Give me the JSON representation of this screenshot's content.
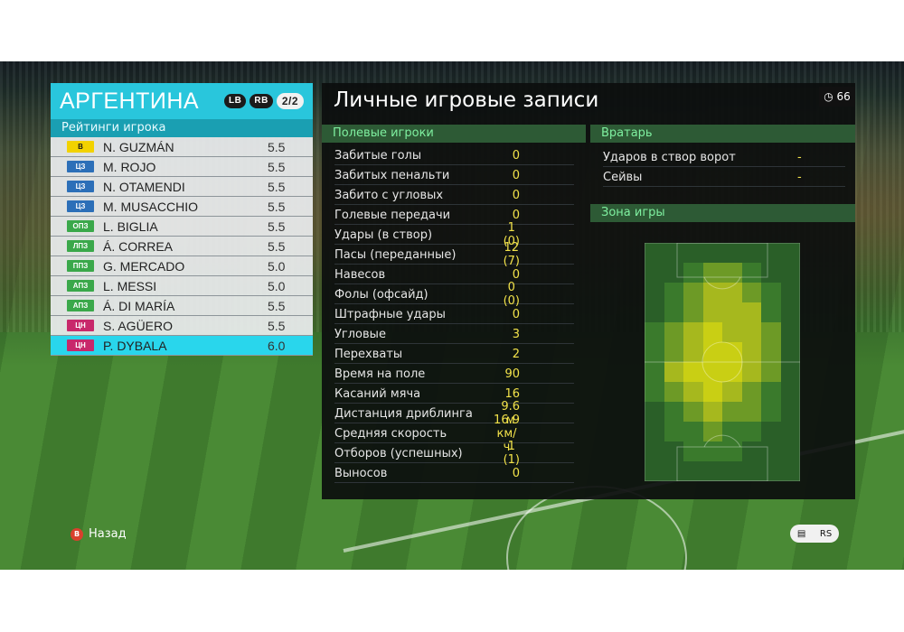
{
  "team": {
    "name": "АРГЕНТИНА",
    "lb": "LB",
    "rb": "RB",
    "page": "2/2",
    "ratings_title": "Рейтинги игрока",
    "players": [
      {
        "pos": "В",
        "pos_color": "#f2d200",
        "pos_text_color": "#1a1a1a",
        "name": "N. GUZMÁN",
        "rating": "5.5"
      },
      {
        "pos": "ЦЗ",
        "pos_color": "#2c6fb8",
        "pos_text_color": "#ffffff",
        "name": "M. ROJO",
        "rating": "5.5"
      },
      {
        "pos": "ЦЗ",
        "pos_color": "#2c6fb8",
        "pos_text_color": "#ffffff",
        "name": "N. OTAMENDI",
        "rating": "5.5"
      },
      {
        "pos": "ЦЗ",
        "pos_color": "#2c6fb8",
        "pos_text_color": "#ffffff",
        "name": "M. MUSACCHIO",
        "rating": "5.5"
      },
      {
        "pos": "ОПЗ",
        "pos_color": "#3aa84a",
        "pos_text_color": "#ffffff",
        "name": "L. BIGLIA",
        "rating": "5.5"
      },
      {
        "pos": "ЛПЗ",
        "pos_color": "#3aa84a",
        "pos_text_color": "#ffffff",
        "name": "Á. CORREA",
        "rating": "5.5"
      },
      {
        "pos": "ППЗ",
        "pos_color": "#3aa84a",
        "pos_text_color": "#ffffff",
        "name": "G. MERCADO",
        "rating": "5.0"
      },
      {
        "pos": "АПЗ",
        "pos_color": "#3aa84a",
        "pos_text_color": "#ffffff",
        "name": "L. MESSI",
        "rating": "5.0"
      },
      {
        "pos": "АПЗ",
        "pos_color": "#3aa84a",
        "pos_text_color": "#ffffff",
        "name": "Á. DI MARÍA",
        "rating": "5.5"
      },
      {
        "pos": "ЦН",
        "pos_color": "#c8286b",
        "pos_text_color": "#ffffff",
        "name": "S. AGÜERO",
        "rating": "5.5"
      },
      {
        "pos": "ЦН",
        "pos_color": "#c8286b",
        "pos_text_color": "#ffffff",
        "name": "P. DYBALA",
        "rating": "6.0",
        "selected": true
      }
    ]
  },
  "stats": {
    "title": "Личные игровые записи",
    "timer": "66",
    "outfield_title": "Полевые игроки",
    "outfield": [
      {
        "label": "Забитые голы",
        "value": "0"
      },
      {
        "label": "Забитых пенальти",
        "value": "0"
      },
      {
        "label": "Забито с угловых",
        "value": "0"
      },
      {
        "label": "Голевые передачи",
        "value": "0"
      },
      {
        "label": "Удары (в створ)",
        "value": "1 (0)"
      },
      {
        "label": "Пасы (переданные)",
        "value": "12 (7)"
      },
      {
        "label": "Навесов",
        "value": "0"
      },
      {
        "label": "Фолы (офсайд)",
        "value": "0 (0)"
      },
      {
        "label": "Штрафные удары",
        "value": "0"
      },
      {
        "label": "Угловые",
        "value": "3"
      },
      {
        "label": "Перехваты",
        "value": "2"
      },
      {
        "label": "Время на поле",
        "value": "90"
      },
      {
        "label": "Касаний мяча",
        "value": "16"
      },
      {
        "label": "Дистанция дриблинга",
        "value": "9.6 м"
      },
      {
        "label": "Средняя скорость",
        "value": "16.9 км/ч"
      },
      {
        "label": "Отборов (успешных)",
        "value": "1 (1)"
      },
      {
        "label": "Выносов",
        "value": "0"
      }
    ],
    "gk_title": "Вратарь",
    "gk": [
      {
        "label": "Ударов в створ ворот",
        "value": "-"
      },
      {
        "label": "Сейвы",
        "value": "-"
      }
    ],
    "zone_title": "Зона игры"
  },
  "heatmap": {
    "cols": 8,
    "rows": 12,
    "colors": [
      "#2a5f28",
      "#3a7a2c",
      "#6d9a26",
      "#a6b81e",
      "#c9cf14"
    ],
    "grid": [
      [
        0,
        0,
        0,
        0,
        0,
        0,
        0,
        0
      ],
      [
        0,
        0,
        1,
        2,
        2,
        1,
        0,
        0
      ],
      [
        0,
        1,
        2,
        3,
        3,
        2,
        1,
        0
      ],
      [
        0,
        1,
        2,
        3,
        3,
        3,
        1,
        0
      ],
      [
        1,
        2,
        3,
        4,
        3,
        3,
        2,
        0
      ],
      [
        1,
        2,
        3,
        4,
        4,
        3,
        2,
        0
      ],
      [
        1,
        3,
        4,
        4,
        4,
        3,
        2,
        0
      ],
      [
        1,
        2,
        3,
        4,
        3,
        2,
        1,
        0
      ],
      [
        0,
        1,
        2,
        3,
        2,
        2,
        1,
        0
      ],
      [
        0,
        1,
        1,
        2,
        1,
        1,
        0,
        0
      ],
      [
        0,
        0,
        1,
        1,
        1,
        0,
        0,
        0
      ],
      [
        0,
        0,
        0,
        0,
        0,
        0,
        0,
        0
      ]
    ]
  },
  "footer": {
    "back_key": "B",
    "back_label": "Назад",
    "right_key": "RS"
  }
}
